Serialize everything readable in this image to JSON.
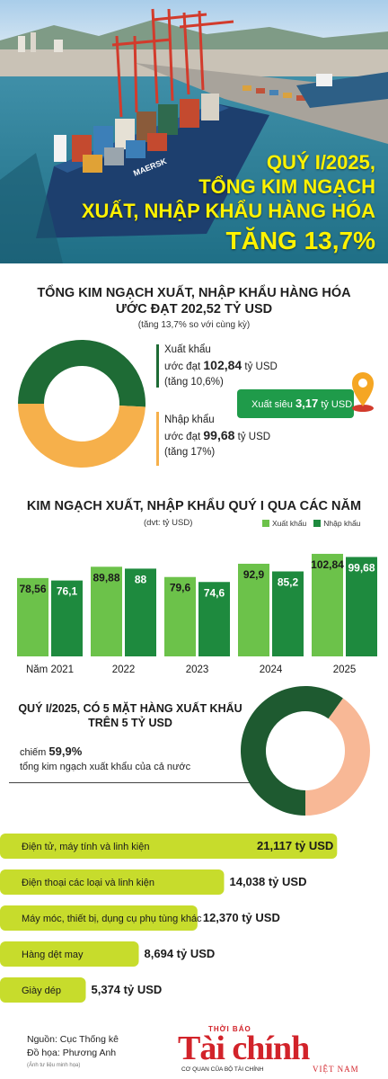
{
  "hero": {
    "title_l1": "QUÝ I/2025,",
    "title_l2": "TỔNG KIM NGẠCH",
    "title_l3": "XUẤT, NHẬP KHẨU HÀNG HÓA",
    "title_l4": "TĂNG 13,7%",
    "ship_label": "MAERSK"
  },
  "section1": {
    "title_l1": "TỔNG KIM NGẠCH XUẤT, NHẬP KHẨU HÀNG HÓA",
    "title_l2": "ƯỚC ĐẠT 202,52 TỶ USD",
    "subtitle": "(tăng 13,7% so với cùng kỳ)",
    "export": {
      "label": "Xuất khẩu",
      "prefix": "ước đạt",
      "value": "102,84",
      "unit": "tỷ USD",
      "growth": "(tăng 10,6%)"
    },
    "import": {
      "label": "Nhập khẩu",
      "prefix": "ước đạt",
      "value": "99,68",
      "unit": "tỷ USD",
      "growth": "(tăng 17%)"
    },
    "surplus": {
      "label": "Xuất siêu",
      "value": "3,17",
      "unit": "tỷ USD"
    }
  },
  "section2": {
    "title": "KIM NGẠCH XUẤT, NHẬP KHẨU QUÝ I QUA CÁC NĂM",
    "unit": "(dvt: tỷ USD)"
  },
  "section3": {
    "title_l1": "QUÝ I/2025, CÓ 5 MẶT HÀNG XUẤT KHẨU",
    "title_l2": "TRÊN 5 TỶ USD",
    "prefix": "chiếm",
    "share": "59,9%",
    "line2": "tổng kim ngạch xuất khẩu của cả nước"
  },
  "footer": {
    "source": "Nguồn: Cục Thống kê",
    "graphics": "Đồ họa: Phương Anh",
    "note": "(Ảnh tư liệu minh họa)"
  },
  "logo": {
    "top": "THỜI BÁO",
    "main": "Tài chính",
    "sub": "CƠ QUAN CỦA BỘ TÀI CHÍNH",
    "country": "VIỆT NAM"
  },
  "colors": {
    "dark_green": "#1e6b35",
    "light_green": "#6cc24a",
    "orange": "#f6b04b",
    "peach": "#f8b896",
    "yellow_green": "#c7dc2c",
    "hero_yellow": "#fff200"
  },
  "chart_data": [
    {
      "type": "pie",
      "title": "TỔNG KIM NGẠCH XUẤT, NHẬP KHẨU HÀNG HÓA ƯỚC ĐẠT 202,52 TỶ USD",
      "categories": [
        "Xuất khẩu",
        "Nhập khẩu"
      ],
      "values": [
        102.84,
        99.68
      ],
      "colors": [
        "#1e6b35",
        "#f6b04b"
      ],
      "donut": true
    },
    {
      "type": "bar",
      "title": "KIM NGẠCH XUẤT, NHẬP KHẨU QUÝ I QUA CÁC NĂM",
      "categories": [
        "Năm 2021",
        "2022",
        "2023",
        "2024",
        "2025"
      ],
      "series": [
        {
          "name": "Xuất khẩu",
          "values": [
            78.56,
            89.88,
            79.6,
            92.9,
            102.84
          ],
          "labels": [
            "78,56",
            "89,88",
            "79,6",
            "92,9",
            "102,84"
          ],
          "color": "#6cc24a"
        },
        {
          "name": "Nhập khẩu",
          "values": [
            76.1,
            88,
            74.6,
            85.2,
            99.68
          ],
          "labels": [
            "76,1",
            "88",
            "74,6",
            "85,2",
            "99,68"
          ],
          "color": "#1e8a3e"
        }
      ],
      "ylim": [
        0,
        110
      ],
      "grid": false,
      "legend": "top-right"
    },
    {
      "type": "pie",
      "title": "QUÝ I/2025, CÓ 5 MẶT HÀNG XUẤT KHẨU TRÊN 5 TỶ USD",
      "values": [
        59.9,
        40.1
      ],
      "colors": [
        "#1e5a30",
        "#f8b896"
      ],
      "donut": true
    },
    {
      "type": "bar",
      "orientation": "horizontal",
      "categories": [
        "Điện tử, máy tính và linh kiện",
        "Điện thoại các loại và linh kiện",
        "Máy móc, thiết bị, dụng cụ phụ tùng khác",
        "Hàng dệt may",
        "Giày dép"
      ],
      "values": [
        21.117,
        14.038,
        12.37,
        8.694,
        5.374
      ],
      "labels": [
        "21,117 tỷ USD",
        "14,038 tỷ USD",
        "12,370 tỷ USD",
        "8,694 tỷ USD",
        "5,374 tỷ USD"
      ],
      "color": "#c7dc2c",
      "xlim": [
        0,
        22
      ]
    }
  ]
}
